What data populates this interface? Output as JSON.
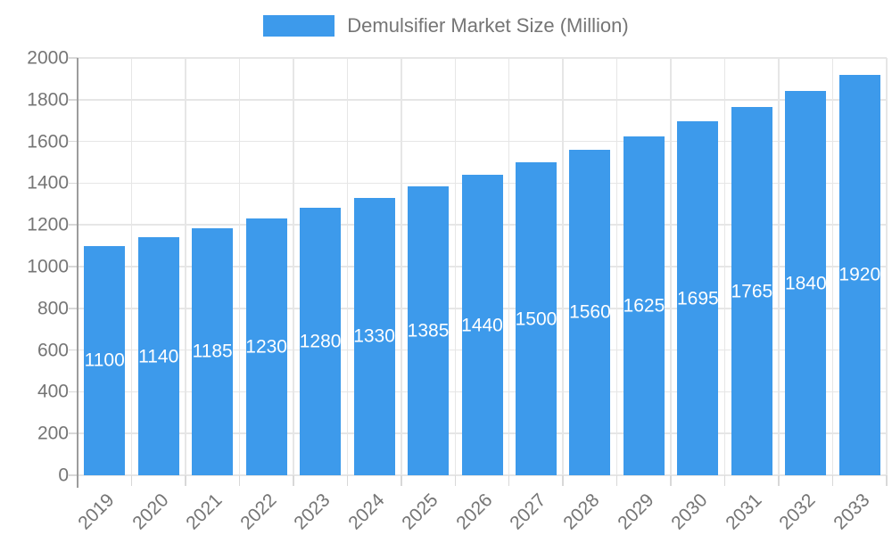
{
  "legend": {
    "label": "Demulsifier Market Size (Million)",
    "swatch_color": "#3D9AEB"
  },
  "chart_data": {
    "type": "bar",
    "title": "Demulsifier Market Size (Million)",
    "categories": [
      "2019",
      "2020",
      "2021",
      "2022",
      "2023",
      "2024",
      "2025",
      "2026",
      "2027",
      "2028",
      "2029",
      "2030",
      "2031",
      "2032",
      "2033"
    ],
    "values": [
      1100,
      1140,
      1185,
      1230,
      1280,
      1330,
      1385,
      1440,
      1500,
      1560,
      1625,
      1695,
      1765,
      1840,
      1920
    ],
    "xlabel": "",
    "ylabel": "",
    "ylim": [
      0,
      2000
    ],
    "ytick_step": 200,
    "y_tick_labels": [
      "0",
      "200",
      "400",
      "600",
      "800",
      "1000",
      "1200",
      "1400",
      "1600",
      "1800",
      "2000"
    ],
    "grid": true,
    "legend_position": "top",
    "bar_color": "#3D9AEB",
    "bar_value_label_color": "#ffffff",
    "axis_text_color": "#757575",
    "gridline_color": "#e6e6e6",
    "x_label_rotation_deg": -45,
    "value_label_position": "center-of-bar"
  }
}
